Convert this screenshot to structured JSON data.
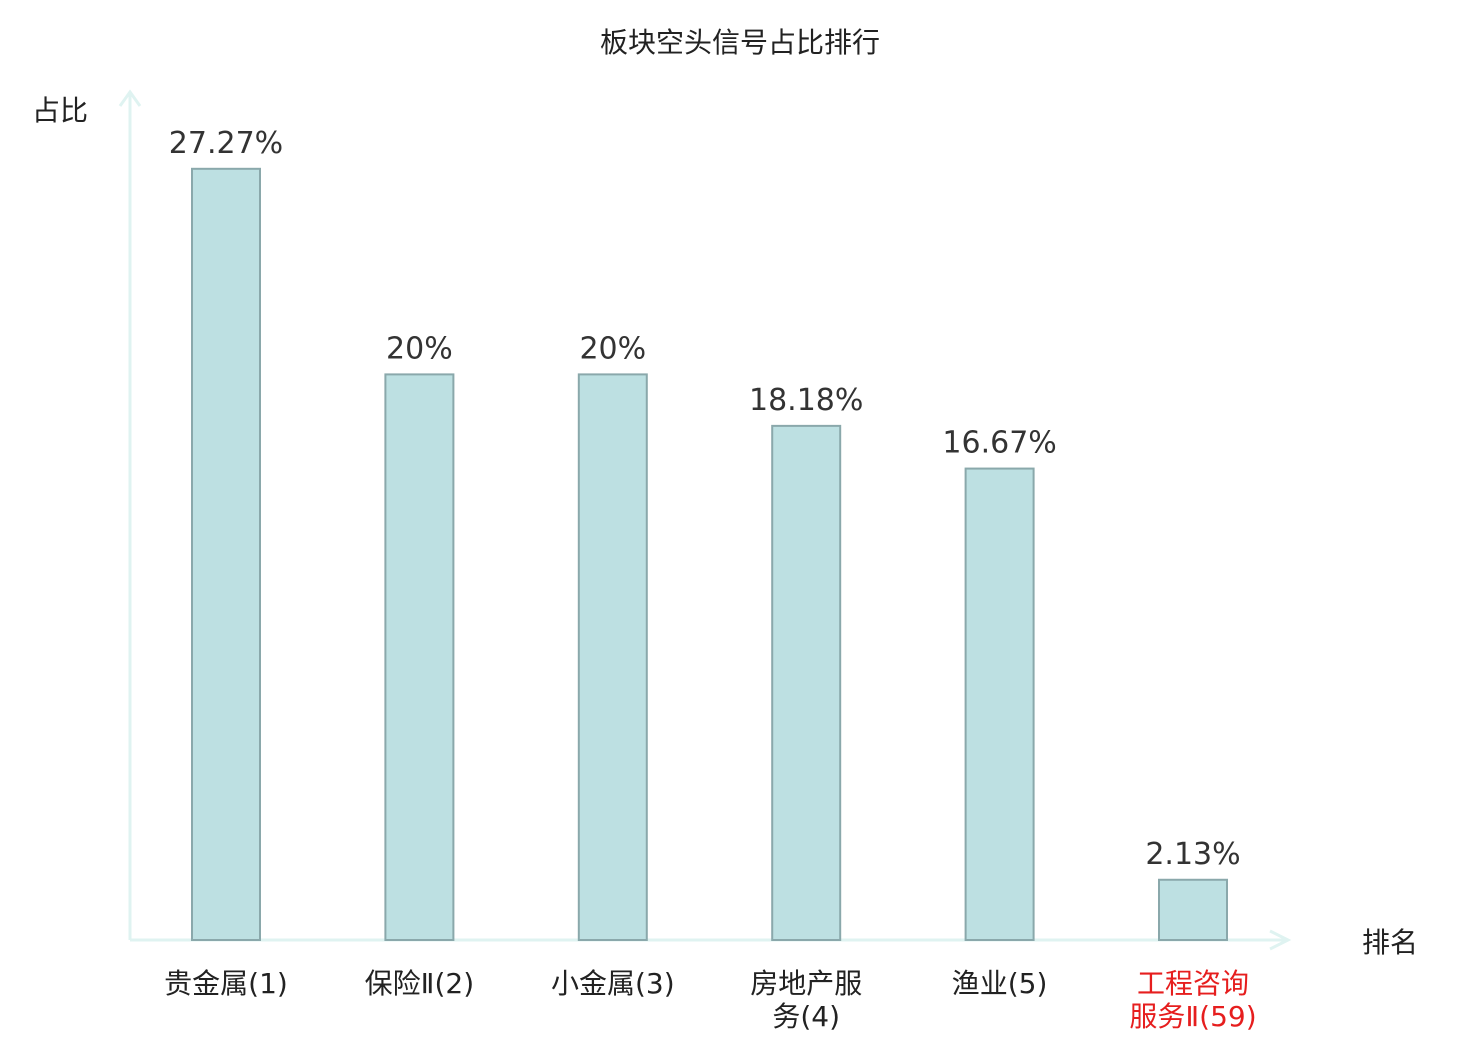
{
  "chart_data": {
    "type": "bar",
    "title": "板块空头信号占比排行",
    "xlabel": "排名",
    "ylabel": "占比",
    "categories": [
      [
        "贵金属(1)"
      ],
      [
        "保险Ⅱ(2)"
      ],
      [
        "小金属(3)"
      ],
      [
        "房地产服",
        "务(4)"
      ],
      [
        "渔业(5)"
      ],
      [
        "工程咨询",
        "服务Ⅱ(59)"
      ]
    ],
    "category_colors": [
      "#222222",
      "#222222",
      "#222222",
      "#222222",
      "#222222",
      "#e61e1e"
    ],
    "values": [
      27.27,
      20,
      20,
      18.18,
      16.67,
      2.13
    ],
    "value_labels": [
      "27.27%",
      "20%",
      "20%",
      "18.18%",
      "16.67%",
      "2.13%"
    ],
    "ylim": [
      0,
      30
    ],
    "grid": false,
    "colors": {
      "bar_fill": "#bde0e2",
      "bar_stroke": "#8aa8ab",
      "axis": "#dff3f1",
      "highlight": "#e61e1e"
    }
  }
}
